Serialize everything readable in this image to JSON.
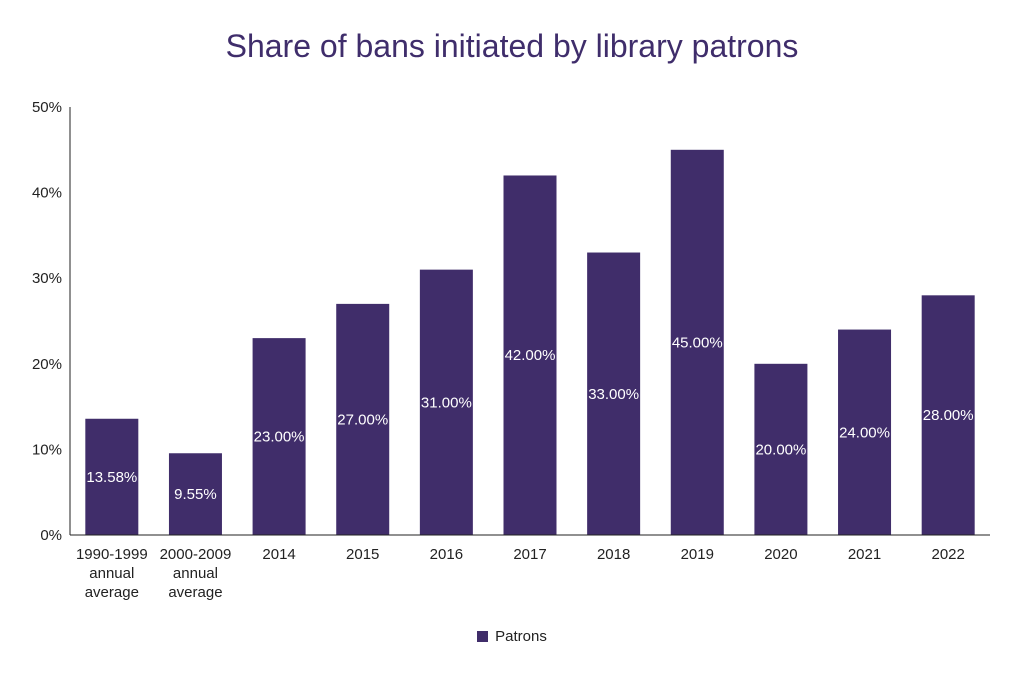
{
  "chart_data": {
    "type": "bar",
    "title": "Share of bans initiated by library patrons",
    "categories": [
      [
        "1990-1999",
        "annual",
        "average"
      ],
      [
        "2000-2009",
        "annual",
        "average"
      ],
      [
        "2014"
      ],
      [
        "2015"
      ],
      [
        "2016"
      ],
      [
        "2017"
      ],
      [
        "2018"
      ],
      [
        "2019"
      ],
      [
        "2020"
      ],
      [
        "2021"
      ],
      [
        "2022"
      ]
    ],
    "series": [
      {
        "name": "Patrons",
        "values": [
          13.58,
          9.55,
          23,
          27,
          31,
          42,
          33,
          45,
          20,
          24,
          28
        ],
        "labels": [
          "13.58%",
          "9.55%",
          "23.00%",
          "27.00%",
          "31.00%",
          "42.00%",
          "33.00%",
          "45.00%",
          "20.00%",
          "24.00%",
          "28.00%"
        ]
      }
    ],
    "yticks": [
      "0%",
      "10%",
      "20%",
      "30%",
      "40%",
      "50%"
    ],
    "ylim": [
      0,
      50
    ],
    "legend_position": "bottom",
    "grid": false,
    "colors": {
      "bar": "#402d6a",
      "title": "#3f2d6b",
      "axis": "#222222"
    }
  }
}
